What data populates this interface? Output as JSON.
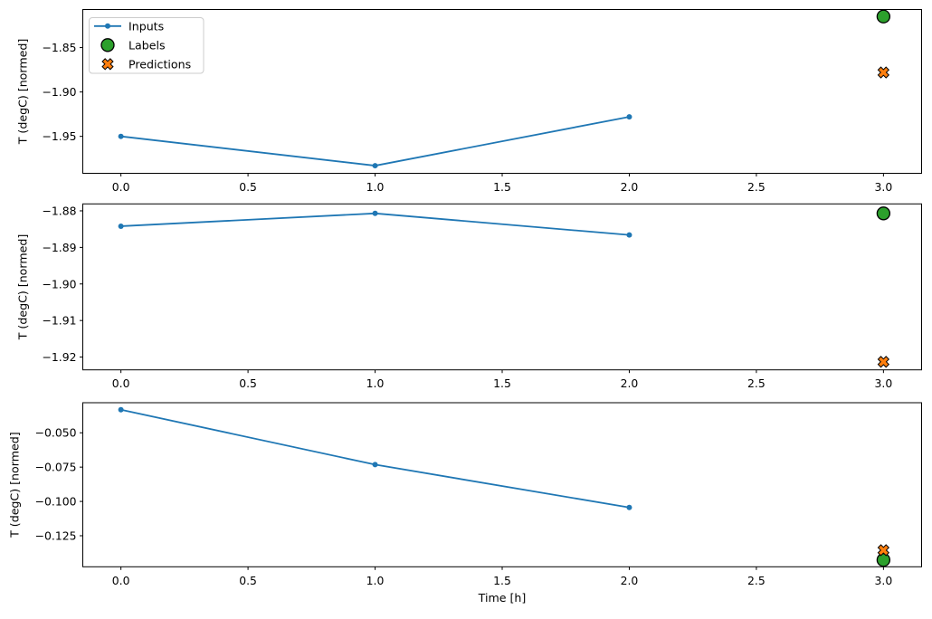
{
  "figure": {
    "background": "#ffffff",
    "xlabel": "Time [h]",
    "legend": {
      "position": "upper-left",
      "items": [
        {
          "label": "Inputs",
          "marker": "line-dot",
          "color": "#1f77b4",
          "edge_color": "#1f77b4"
        },
        {
          "label": "Labels",
          "marker": "circle",
          "color": "#2ca02c",
          "edge_color": "#000000"
        },
        {
          "label": "Predictions",
          "marker": "x",
          "color": "#ff7f0e",
          "edge_color": "#000000"
        }
      ]
    }
  },
  "chart_data": [
    {
      "type": "line",
      "title": "",
      "xlabel": "",
      "ylabel": "T (degC) [normed]",
      "grid": false,
      "xlim": [
        -0.15,
        3.15
      ],
      "ylim": [
        -1.9916,
        -1.8071
      ],
      "xticks": [
        0.0,
        0.5,
        1.0,
        1.5,
        2.0,
        2.5,
        3.0
      ],
      "xtick_labels": [
        "0.0",
        "0.5",
        "1.0",
        "1.5",
        "2.0",
        "2.5",
        "3.0"
      ],
      "yticks": [
        -1.85,
        -1.9,
        -1.95
      ],
      "ytick_labels": [
        "−1.85",
        "−1.90",
        "−1.95"
      ],
      "series": [
        {
          "name": "Inputs",
          "type": "line",
          "marker": "dot",
          "color": "#1f77b4",
          "x": [
            0,
            1,
            2
          ],
          "y": [
            -1.95,
            -1.983,
            -1.928
          ]
        },
        {
          "name": "Labels",
          "type": "scatter",
          "marker": "circle",
          "color": "#2ca02c",
          "x": [
            3
          ],
          "y": [
            -1.815
          ]
        },
        {
          "name": "Predictions",
          "type": "scatter",
          "marker": "x",
          "color": "#ff7f0e",
          "x": [
            3
          ],
          "y": [
            -1.878
          ]
        }
      ]
    },
    {
      "type": "line",
      "title": "",
      "xlabel": "",
      "ylabel": "T (degC) [normed]",
      "grid": false,
      "xlim": [
        -0.15,
        3.15
      ],
      "ylim": [
        -1.9235,
        -1.8781
      ],
      "xticks": [
        0.0,
        0.5,
        1.0,
        1.5,
        2.0,
        2.5,
        3.0
      ],
      "xtick_labels": [
        "0.0",
        "0.5",
        "1.0",
        "1.5",
        "2.0",
        "2.5",
        "3.0"
      ],
      "yticks": [
        -1.88,
        -1.89,
        -1.9,
        -1.91,
        -1.92
      ],
      "ytick_labels": [
        "−1.88",
        "−1.89",
        "−1.90",
        "−1.91",
        "−1.92"
      ],
      "series": [
        {
          "name": "Inputs",
          "type": "line",
          "marker": "dot",
          "color": "#1f77b4",
          "x": [
            0,
            1,
            2
          ],
          "y": [
            -1.8842,
            -1.8807,
            -1.8866
          ]
        },
        {
          "name": "Labels",
          "type": "scatter",
          "marker": "circle",
          "color": "#2ca02c",
          "x": [
            3
          ],
          "y": [
            -1.8807
          ]
        },
        {
          "name": "Predictions",
          "type": "scatter",
          "marker": "x",
          "color": "#ff7f0e",
          "x": [
            3
          ],
          "y": [
            -1.9213
          ]
        }
      ]
    },
    {
      "type": "line",
      "title": "",
      "xlabel": "Time [h]",
      "ylabel": "T (degC) [normed]",
      "grid": false,
      "xlim": [
        -0.15,
        3.15
      ],
      "ylim": [
        -0.1476,
        -0.0281
      ],
      "xticks": [
        0.0,
        0.5,
        1.0,
        1.5,
        2.0,
        2.5,
        3.0
      ],
      "xtick_labels": [
        "0.0",
        "0.5",
        "1.0",
        "1.5",
        "2.0",
        "2.5",
        "3.0"
      ],
      "yticks": [
        -0.05,
        -0.075,
        -0.1,
        -0.125
      ],
      "ytick_labels": [
        "−0.050",
        "−0.075",
        "−0.100",
        "−0.125"
      ],
      "series": [
        {
          "name": "Inputs",
          "type": "line",
          "marker": "dot",
          "color": "#1f77b4",
          "x": [
            0,
            1,
            2
          ],
          "y": [
            -0.0332,
            -0.0732,
            -0.1044
          ]
        },
        {
          "name": "Labels",
          "type": "scatter",
          "marker": "circle",
          "color": "#2ca02c",
          "x": [
            3
          ],
          "y": [
            -0.1426
          ]
        },
        {
          "name": "Predictions",
          "type": "scatter",
          "marker": "x",
          "color": "#ff7f0e",
          "x": [
            3
          ],
          "y": [
            -0.1355
          ]
        }
      ]
    }
  ]
}
